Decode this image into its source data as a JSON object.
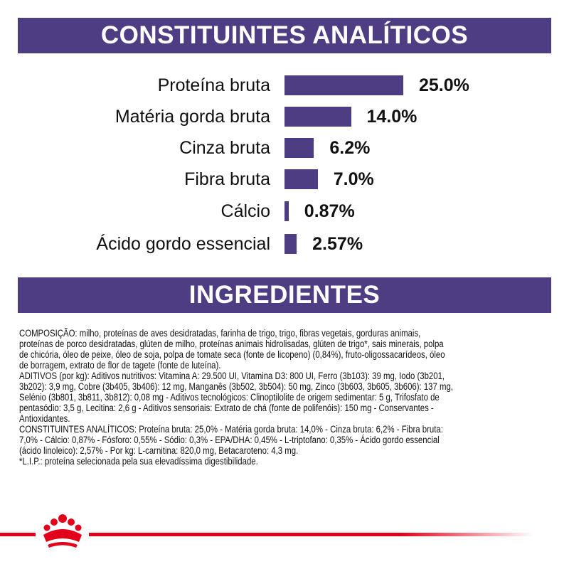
{
  "analytics": {
    "title": "CONSTITUINTES ANALÍTICOS",
    "items": [
      {
        "label": "Proteína bruta",
        "value": 25.0,
        "display": "25.0%"
      },
      {
        "label": "Matéria gorda bruta",
        "value": 14.0,
        "display": "14.0%"
      },
      {
        "label": "Cinza bruta",
        "value": 6.2,
        "display": "6.2%"
      },
      {
        "label": "Fibra bruta",
        "value": 7.0,
        "display": "7.0%"
      },
      {
        "label": "Cálcio",
        "value": 0.87,
        "display": "0.87%"
      },
      {
        "label": "Ácido gordo essencial",
        "value": 2.57,
        "display": "2.57%"
      }
    ]
  },
  "ingredients": {
    "title": "INGREDIENTES",
    "lines": [
      "COMPOSIÇÃO: milho, proteínas de aves desidratadas, farinha de trigo, trigo, fibras vegetais, gorduras animais,",
      "proteínas de porco desidratadas, glúten de milho, proteínas animais hidrolisadas, glúten de trigo*, sais minerais, polpa",
      "de chicória, óleo de peixe, óleo de soja, polpa de tomate seca (fonte de licopeno) (0,84%), fruto-oligossacarídeos, óleo",
      "de borragem, extrato de flor de tagete (fonte de luteína).",
      "ADITIVOS (por kg): Aditivos nutritivos: Vitamina A: 29.500 UI, Vitamina D3: 800 UI, Ferro (3b103): 39 mg, Iodo (3b201,",
      "3b202): 3,9 mg, Cobre (3b405, 3b406): 12 mg, Manganês (3b502, 3b504): 50 mg, Zinco (3b603, 3b605, 3b606): 137 mg,",
      "Selénio (3b801, 3b811, 3b812): 0,08 mg - Aditivos tecnológicos: Clinoptilolite de origem sedimentar: 5 g, Trifosfato de",
      "pentasódio: 3,5 g, Lecitina: 2,6 g - Aditivos sensoriais: Extrato de chá (fonte de polifenóis): 150 mg - Conservantes -",
      "Antioxidantes.",
      "CONSTITUINTES ANALÍTICOS: Proteína bruta: 25,0% - Matéria gorda bruta: 14,0% - Cinza bruta: 6,2% - Fibra bruta:",
      "7,0% - Cálcio: 0,87% - Fósforo: 0,55% - Sódio: 0,3% - EPA/DHA: 0,45% - L-triptofano: 0,35% - Ácido gordo essencial",
      "(ácido linoleico): 2,57% - Por kg: L-carnitina: 820,0 mg, Betacaroteno: 4,3 mg.",
      "*L.I.P.: proteína selecionada pela sua elevadíssima digestibilidade."
    ]
  },
  "colors": {
    "accent": "#4f3d84",
    "brand_red": "#e2001a"
  }
}
